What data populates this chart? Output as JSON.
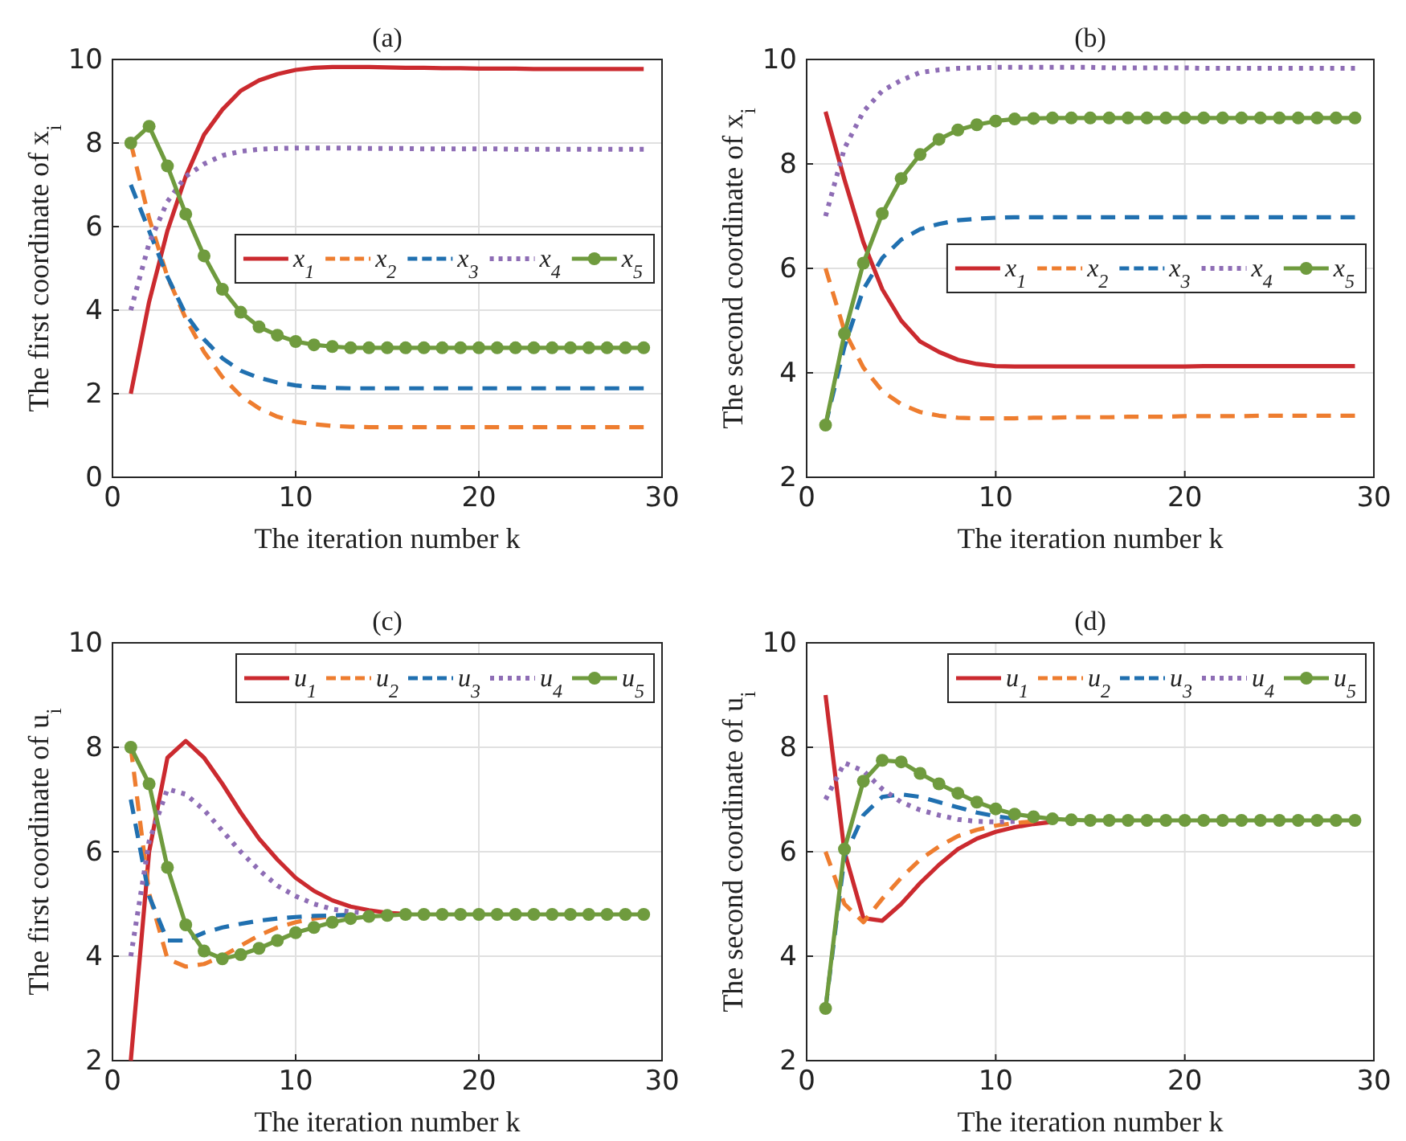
{
  "chart_data": [
    {
      "type": "line",
      "title": "(a)",
      "xlabel": "The iteration number k",
      "ylabel": "The first coordinate of x$_{i}$",
      "xlim": [
        0,
        30
      ],
      "xticks": [
        0,
        10,
        20,
        30
      ],
      "ylim": [
        0,
        10
      ],
      "yticks": [
        0,
        2,
        4,
        6,
        8,
        10
      ],
      "grid": true,
      "legend": "right",
      "x": [
        1,
        2,
        3,
        4,
        5,
        6,
        7,
        8,
        9,
        10,
        11,
        12,
        13,
        14,
        15,
        16,
        17,
        18,
        19,
        20,
        21,
        22,
        23,
        24,
        25,
        26,
        27,
        28,
        29
      ],
      "series": [
        {
          "name": "x$_{1}$",
          "color": "#cb2a2f",
          "line_style": "solid",
          "marker": "none",
          "values": [
            2,
            4.2,
            5.9,
            7.2,
            8.2,
            8.8,
            9.25,
            9.5,
            9.65,
            9.75,
            9.8,
            9.82,
            9.82,
            9.82,
            9.81,
            9.8,
            9.8,
            9.79,
            9.79,
            9.78,
            9.78,
            9.78,
            9.77,
            9.77,
            9.77,
            9.77,
            9.77,
            9.77,
            9.77
          ]
        },
        {
          "name": "x$_{2}$",
          "color": "#ee7d2f",
          "line_style": "dashed",
          "marker": "none",
          "values": [
            8,
            6.2,
            4.8,
            3.8,
            3.0,
            2.4,
            1.95,
            1.65,
            1.45,
            1.33,
            1.27,
            1.23,
            1.21,
            1.2,
            1.2,
            1.2,
            1.2,
            1.2,
            1.2,
            1.2,
            1.2,
            1.2,
            1.2,
            1.2,
            1.2,
            1.2,
            1.2,
            1.2,
            1.2
          ]
        },
        {
          "name": "x$_{3}$",
          "color": "#2070b0",
          "line_style": "dashed",
          "marker": "none",
          "values": [
            7,
            5.9,
            4.8,
            3.9,
            3.3,
            2.85,
            2.55,
            2.38,
            2.27,
            2.2,
            2.16,
            2.14,
            2.13,
            2.13,
            2.13,
            2.13,
            2.13,
            2.13,
            2.13,
            2.13,
            2.13,
            2.13,
            2.13,
            2.13,
            2.13,
            2.13,
            2.13,
            2.13,
            2.13
          ]
        },
        {
          "name": "x$_{4}$",
          "color": "#8e6db5",
          "line_style": "dotted",
          "marker": "none",
          "values": [
            4,
            5.6,
            6.6,
            7.2,
            7.5,
            7.7,
            7.8,
            7.85,
            7.87,
            7.88,
            7.88,
            7.88,
            7.88,
            7.87,
            7.87,
            7.87,
            7.86,
            7.86,
            7.86,
            7.86,
            7.86,
            7.85,
            7.85,
            7.85,
            7.85,
            7.85,
            7.85,
            7.85,
            7.85
          ]
        },
        {
          "name": "x$_{5}$",
          "color": "#6f9b3e",
          "line_style": "solid",
          "marker": "circle",
          "values": [
            8,
            8.4,
            7.45,
            6.3,
            5.3,
            4.5,
            3.95,
            3.6,
            3.4,
            3.25,
            3.17,
            3.13,
            3.1,
            3.1,
            3.1,
            3.1,
            3.1,
            3.1,
            3.1,
            3.1,
            3.1,
            3.1,
            3.1,
            3.1,
            3.1,
            3.1,
            3.1,
            3.1,
            3.1
          ]
        }
      ]
    },
    {
      "type": "line",
      "title": "(b)",
      "xlabel": "The iteration number k",
      "ylabel": "The second coordinate of x$_{i}$",
      "xlim": [
        0,
        30
      ],
      "xticks": [
        0,
        10,
        20,
        30
      ],
      "ylim": [
        2,
        10
      ],
      "yticks": [
        2,
        4,
        6,
        8,
        10
      ],
      "grid": true,
      "legend": "right",
      "x": [
        1,
        2,
        3,
        4,
        5,
        6,
        7,
        8,
        9,
        10,
        11,
        12,
        13,
        14,
        15,
        16,
        17,
        18,
        19,
        20,
        21,
        22,
        23,
        24,
        25,
        26,
        27,
        28,
        29
      ],
      "series": [
        {
          "name": "x$_{1}$",
          "color": "#cb2a2f",
          "line_style": "solid",
          "marker": "none",
          "values": [
            9,
            7.7,
            6.5,
            5.6,
            5.0,
            4.6,
            4.4,
            4.25,
            4.17,
            4.13,
            4.12,
            4.12,
            4.12,
            4.12,
            4.12,
            4.12,
            4.12,
            4.12,
            4.12,
            4.12,
            4.13,
            4.13,
            4.13,
            4.13,
            4.13,
            4.13,
            4.13,
            4.13,
            4.13
          ]
        },
        {
          "name": "x$_{2}$",
          "color": "#ee7d2f",
          "line_style": "dashed",
          "marker": "none",
          "values": [
            6,
            4.8,
            4.1,
            3.65,
            3.4,
            3.25,
            3.18,
            3.14,
            3.13,
            3.13,
            3.13,
            3.14,
            3.14,
            3.15,
            3.15,
            3.15,
            3.16,
            3.16,
            3.16,
            3.17,
            3.17,
            3.17,
            3.17,
            3.18,
            3.18,
            3.18,
            3.18,
            3.18,
            3.18
          ]
        },
        {
          "name": "x$_{3}$",
          "color": "#2070b0",
          "line_style": "dashed",
          "marker": "none",
          "values": [
            3,
            4.5,
            5.6,
            6.2,
            6.55,
            6.75,
            6.85,
            6.92,
            6.95,
            6.97,
            6.98,
            6.98,
            6.98,
            6.98,
            6.98,
            6.98,
            6.98,
            6.98,
            6.98,
            6.98,
            6.98,
            6.98,
            6.98,
            6.98,
            6.98,
            6.98,
            6.98,
            6.98,
            6.98
          ]
        },
        {
          "name": "x$_{4}$",
          "color": "#8e6db5",
          "line_style": "dotted",
          "marker": "none",
          "values": [
            7,
            8.3,
            9.0,
            9.4,
            9.6,
            9.75,
            9.8,
            9.83,
            9.84,
            9.85,
            9.85,
            9.85,
            9.85,
            9.85,
            9.85,
            9.84,
            9.84,
            9.84,
            9.84,
            9.84,
            9.83,
            9.83,
            9.83,
            9.83,
            9.83,
            9.83,
            9.83,
            9.83,
            9.83
          ]
        },
        {
          "name": "x$_{5}$",
          "color": "#6f9b3e",
          "line_style": "solid",
          "marker": "circle",
          "values": [
            3,
            4.75,
            6.1,
            7.05,
            7.72,
            8.18,
            8.47,
            8.65,
            8.75,
            8.82,
            8.86,
            8.87,
            8.88,
            8.88,
            8.88,
            8.88,
            8.88,
            8.88,
            8.88,
            8.88,
            8.88,
            8.88,
            8.88,
            8.88,
            8.88,
            8.88,
            8.88,
            8.88,
            8.88
          ]
        }
      ]
    },
    {
      "type": "line",
      "title": "(c)",
      "xlabel": "The iteration number k",
      "ylabel": "The first coordinate of u$_{i}$",
      "xlim": [
        0,
        30
      ],
      "xticks": [
        0,
        10,
        20,
        30
      ],
      "ylim": [
        2,
        10
      ],
      "yticks": [
        2,
        4,
        6,
        8,
        10
      ],
      "grid": true,
      "legend": "top right",
      "x": [
        1,
        2,
        3,
        4,
        5,
        6,
        7,
        8,
        9,
        10,
        11,
        12,
        13,
        14,
        15,
        16,
        17,
        18,
        19,
        20,
        21,
        22,
        23,
        24,
        25,
        26,
        27,
        28,
        29
      ],
      "series": [
        {
          "name": "u$_{1}$",
          "color": "#cb2a2f",
          "line_style": "solid",
          "marker": "none",
          "values": [
            2,
            6.0,
            7.8,
            8.12,
            7.8,
            7.3,
            6.75,
            6.25,
            5.85,
            5.5,
            5.25,
            5.07,
            4.95,
            4.88,
            4.83,
            4.81,
            null,
            null,
            null,
            null,
            null,
            null,
            null,
            null,
            null,
            null,
            null,
            null,
            null
          ]
        },
        {
          "name": "u$_{2}$",
          "color": "#ee7d2f",
          "line_style": "dashed",
          "marker": "none",
          "values": [
            8,
            5.2,
            3.95,
            3.8,
            3.85,
            4.0,
            4.2,
            4.4,
            4.55,
            4.65,
            4.72,
            4.77,
            4.79,
            null,
            null,
            null,
            null,
            null,
            null,
            null,
            null,
            null,
            null,
            null,
            null,
            null,
            null,
            null,
            null
          ]
        },
        {
          "name": "u$_{3}$",
          "color": "#2070b0",
          "line_style": "dashed",
          "marker": "none",
          "values": [
            7,
            5.15,
            4.3,
            4.3,
            4.45,
            4.55,
            4.62,
            4.68,
            4.72,
            4.75,
            4.77,
            4.78,
            4.79,
            null,
            null,
            null,
            null,
            null,
            null,
            null,
            null,
            null,
            null,
            null,
            null,
            null,
            null,
            null,
            null
          ]
        },
        {
          "name": "u$_{4}$",
          "color": "#8e6db5",
          "line_style": "dotted",
          "marker": "none",
          "values": [
            4,
            6.2,
            7.2,
            7.1,
            6.8,
            6.4,
            6.0,
            5.65,
            5.35,
            5.15,
            5.0,
            4.9,
            4.85,
            4.82,
            null,
            null,
            null,
            null,
            null,
            null,
            null,
            null,
            null,
            null,
            null,
            null,
            null,
            null,
            null
          ]
        },
        {
          "name": "u$_{5}$",
          "color": "#6f9b3e",
          "line_style": "solid",
          "marker": "circle",
          "values": [
            8,
            7.3,
            5.7,
            4.6,
            4.1,
            3.95,
            4.03,
            4.15,
            4.3,
            4.45,
            4.55,
            4.65,
            4.72,
            4.76,
            4.78,
            4.8,
            4.8,
            4.8,
            4.8,
            4.8,
            4.8,
            4.8,
            4.8,
            4.8,
            4.8,
            4.8,
            4.8,
            4.8,
            4.8
          ]
        }
      ]
    },
    {
      "type": "line",
      "title": "(d)",
      "xlabel": "The iteration number k",
      "ylabel": "The second coordinate of u$_{i}$",
      "xlim": [
        0,
        30
      ],
      "xticks": [
        0,
        10,
        20,
        30
      ],
      "ylim": [
        2,
        10
      ],
      "yticks": [
        2,
        4,
        6,
        8,
        10
      ],
      "grid": true,
      "legend": "top right",
      "x": [
        1,
        2,
        3,
        4,
        5,
        6,
        7,
        8,
        9,
        10,
        11,
        12,
        13,
        14,
        15,
        16,
        17,
        18,
        19,
        20,
        21,
        22,
        23,
        24,
        25,
        26,
        27,
        28,
        29
      ],
      "series": [
        {
          "name": "u$_{1}$",
          "color": "#cb2a2f",
          "line_style": "solid",
          "marker": "none",
          "values": [
            9,
            6.0,
            4.73,
            4.68,
            5.0,
            5.4,
            5.75,
            6.05,
            6.25,
            6.38,
            6.47,
            6.53,
            6.57,
            null,
            null,
            null,
            null,
            null,
            null,
            null,
            null,
            null,
            null,
            null,
            null,
            null,
            null,
            null,
            null
          ]
        },
        {
          "name": "u$_{2}$",
          "color": "#ee7d2f",
          "line_style": "dashed",
          "marker": "none",
          "values": [
            6,
            5.0,
            4.65,
            5.1,
            5.5,
            5.85,
            6.1,
            6.3,
            6.42,
            6.5,
            6.55,
            6.58,
            null,
            null,
            null,
            null,
            null,
            null,
            null,
            null,
            null,
            null,
            null,
            null,
            null,
            null,
            null,
            null,
            null
          ]
        },
        {
          "name": "u$_{3}$",
          "color": "#2070b0",
          "line_style": "dashed",
          "marker": "none",
          "values": [
            3,
            5.9,
            6.7,
            7.05,
            7.1,
            7.05,
            6.95,
            6.85,
            6.75,
            6.68,
            6.63,
            null,
            null,
            null,
            null,
            null,
            null,
            null,
            null,
            null,
            null,
            null,
            null,
            null,
            null,
            null,
            null,
            null,
            null
          ]
        },
        {
          "name": "u$_{4}$",
          "color": "#8e6db5",
          "line_style": "dotted",
          "marker": "none",
          "values": [
            7,
            7.7,
            7.55,
            7.2,
            6.95,
            6.8,
            6.7,
            6.62,
            6.58,
            6.57,
            6.58,
            null,
            null,
            null,
            null,
            null,
            null,
            null,
            null,
            null,
            null,
            null,
            null,
            null,
            null,
            null,
            null,
            null,
            null
          ]
        },
        {
          "name": "u$_{5}$",
          "color": "#6f9b3e",
          "line_style": "solid",
          "marker": "circle",
          "values": [
            3,
            6.05,
            7.35,
            7.75,
            7.72,
            7.5,
            7.3,
            7.12,
            6.95,
            6.82,
            6.72,
            6.67,
            6.63,
            6.61,
            6.6,
            6.6,
            6.6,
            6.6,
            6.6,
            6.6,
            6.6,
            6.6,
            6.6,
            6.6,
            6.6,
            6.6,
            6.6,
            6.6,
            6.6
          ]
        }
      ]
    }
  ]
}
